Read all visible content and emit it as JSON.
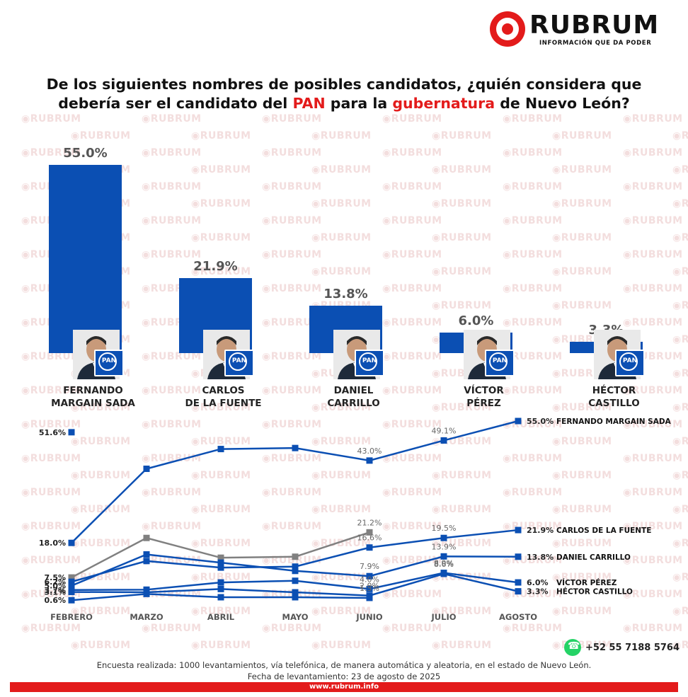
{
  "brand": {
    "name": "RUBRUM",
    "tagline": "INFORMACIÓN QUE DA PODER",
    "watermark": "RUBRUM",
    "color_red": "#e31b1b",
    "color_blue": "#0b4fb3",
    "color_gray": "#808080"
  },
  "title": {
    "part1": "De los siguientes nombres de posibles candidatos, ¿quién considera que",
    "part2": "debería ser el candidato del ",
    "pan": "PAN",
    "part3": " para la ",
    "gub": "gubernatura",
    "part4": " de Nuevo León?"
  },
  "candidates": [
    {
      "line1": "FERNANDO",
      "line2": "MARGAIN SADA",
      "value_label": "55.0%",
      "badge": "PAN"
    },
    {
      "line1": "CARLOS",
      "line2": "DE LA FUENTE",
      "value_label": "21.9%",
      "badge": "PAN"
    },
    {
      "line1": "DANIEL",
      "line2": "CARRILLO",
      "value_label": "13.8%",
      "badge": "PAN"
    },
    {
      "line1": "VÍCTOR",
      "line2": "PÉREZ",
      "value_label": "6.0%",
      "badge": "PAN"
    },
    {
      "line1": "HÉCTOR",
      "line2": "CASTILLO",
      "value_label": "3.3%",
      "badge": "PAN"
    }
  ],
  "chart_data": [
    {
      "type": "bar",
      "categories": [
        "FERNANDO MARGAIN SADA",
        "CARLOS DE LA FUENTE",
        "DANIEL CARRILLO",
        "VÍCTOR PÉREZ",
        "HÉCTOR CASTILLO"
      ],
      "values": [
        55.0,
        21.9,
        13.8,
        6.0,
        3.3
      ],
      "title": "De los siguientes nombres de posibles candidatos, ¿quién considera que debería ser el candidato del PAN para la gubernatura de Nuevo León?",
      "ylim": [
        0,
        55
      ]
    },
    {
      "type": "line",
      "x": [
        "FEBRERO",
        "MARZO",
        "ABRIL",
        "MAYO",
        "JUNIO",
        "JULIO",
        "AGOSTO"
      ],
      "ylim": [
        0,
        55
      ],
      "series": [
        {
          "name": "FERNANDO MARGAIN SADA",
          "values": [
            18.0,
            40.5,
            46.5,
            46.8,
            43.0,
            49.1,
            55.0
          ],
          "labels": [
            "18.0%",
            "",
            "",
            "",
            "43.0%",
            "49.1%",
            "55.0%"
          ],
          "color": "#0b4fb3"
        },
        {
          "name": "",
          "values": [
            7.5,
            19.5,
            13.5,
            13.8,
            21.2,
            null,
            null
          ],
          "labels": [
            "7.5%",
            "",
            "",
            "",
            "21.2%",
            "",
            ""
          ],
          "color": "#808080"
        },
        {
          "name": "CARLOS DE LA FUENTE",
          "values": [
            6.2,
            12.5,
            10.5,
            10.8,
            16.6,
            19.5,
            21.9
          ],
          "labels": [
            "6.2%",
            "",
            "",
            "",
            "16.6%",
            "19.5%",
            "21.9%"
          ],
          "color": "#0b4fb3"
        },
        {
          "name": "DANIEL CARRILLO",
          "values": [
            5.0,
            14.5,
            12.0,
            9.5,
            7.9,
            13.9,
            13.8
          ],
          "labels": [
            "5.0%",
            "",
            "",
            "",
            "7.9%",
            "13.9%",
            "13.8%"
          ],
          "color": "#0b4fb3"
        },
        {
          "name": "VÍCTOR PÉREZ",
          "values": [
            3.7,
            3.8,
            6.0,
            6.5,
            4.0,
            8.9,
            6.0
          ],
          "labels": [
            "3.7%",
            "",
            "",
            "",
            "4.0%",
            "8.9%",
            "6.0%"
          ],
          "color": "#0b4fb3"
        },
        {
          "name": "HÉCTOR CASTILLO",
          "values": [
            3.1,
            3.0,
            4.0,
            3.0,
            2.0,
            8.6,
            3.3
          ],
          "labels": [
            "3.1%",
            "",
            "",
            "",
            "2.0%",
            "8.6%",
            "3.3%"
          ],
          "color": "#0b4fb3"
        },
        {
          "name": "",
          "values": [
            0.6,
            2.5,
            1.5,
            1.5,
            1.3,
            null,
            null
          ],
          "labels": [
            "0.6%",
            "",
            "",
            "",
            "1.3%",
            "",
            ""
          ],
          "color": "#0b4fb3"
        },
        {
          "name": "",
          "values": [
            51.6,
            null,
            null,
            null,
            null,
            null,
            null
          ],
          "labels": [
            "51.6%",
            "",
            "",
            "",
            "",
            "",
            ""
          ],
          "color": "#0b4fb3"
        }
      ]
    }
  ],
  "footer": {
    "phone": "+52 55 7188 5764",
    "methodology_line1": "Encuesta realizada: 1000 levantamientos, vía telefónica, de manera automática y aleatoria, en el estado de Nuevo León.",
    "methodology_line2": "Fecha de levantamiento: 23 de agosto de 2025",
    "url": "www.rubrum.info",
    "icon": "whatsapp-icon"
  }
}
